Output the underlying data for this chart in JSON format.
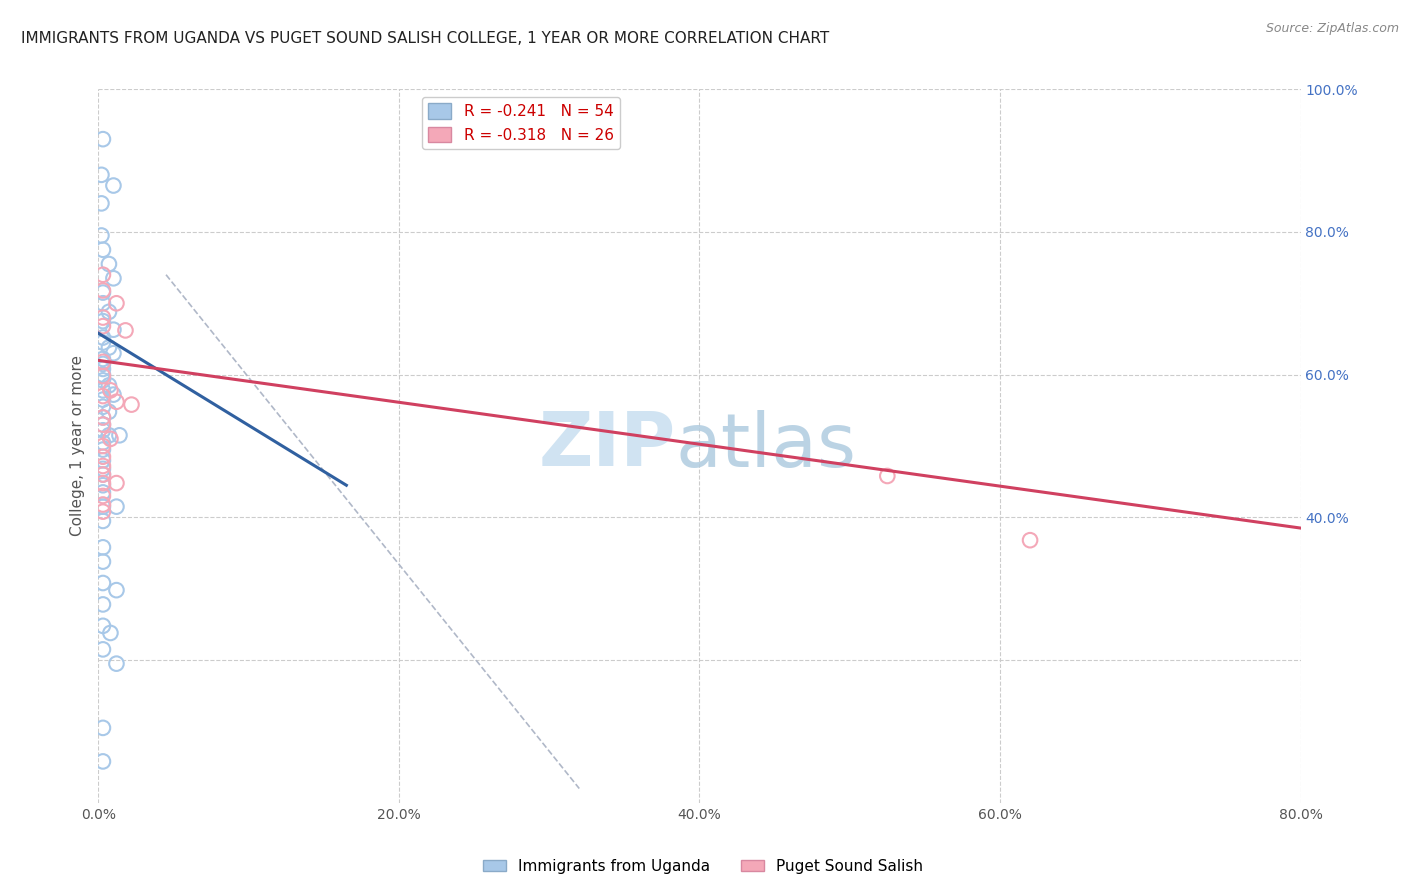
{
  "title": "IMMIGRANTS FROM UGANDA VS PUGET SOUND SALISH COLLEGE, 1 YEAR OR MORE CORRELATION CHART",
  "source": "Source: ZipAtlas.com",
  "ylabel": "College, 1 year or more",
  "xlim": [
    0.0,
    0.8
  ],
  "ylim": [
    0.0,
    1.0
  ],
  "blue_color": "#a8c8e8",
  "pink_color": "#f4a8b8",
  "blue_line_color": "#3060a0",
  "pink_line_color": "#d04060",
  "right_axis_color": "#4472c4",
  "blue_R": "-0.241",
  "blue_N": "54",
  "pink_R": "-0.318",
  "pink_N": "26",
  "blue_dots": [
    [
      0.003,
      0.93
    ],
    [
      0.002,
      0.88
    ],
    [
      0.01,
      0.865
    ],
    [
      0.002,
      0.84
    ],
    [
      0.002,
      0.795
    ],
    [
      0.003,
      0.775
    ],
    [
      0.007,
      0.755
    ],
    [
      0.01,
      0.735
    ],
    [
      0.003,
      0.715
    ],
    [
      0.003,
      0.7
    ],
    [
      0.007,
      0.688
    ],
    [
      0.003,
      0.675
    ],
    [
      0.01,
      0.663
    ],
    [
      0.003,
      0.652
    ],
    [
      0.003,
      0.645
    ],
    [
      0.007,
      0.638
    ],
    [
      0.01,
      0.63
    ],
    [
      0.003,
      0.622
    ],
    [
      0.003,
      0.615
    ],
    [
      0.003,
      0.608
    ],
    [
      0.003,
      0.6
    ],
    [
      0.003,
      0.592
    ],
    [
      0.007,
      0.585
    ],
    [
      0.003,
      0.578
    ],
    [
      0.01,
      0.572
    ],
    [
      0.003,
      0.565
    ],
    [
      0.003,
      0.555
    ],
    [
      0.007,
      0.548
    ],
    [
      0.003,
      0.54
    ],
    [
      0.003,
      0.53
    ],
    [
      0.003,
      0.522
    ],
    [
      0.007,
      0.515
    ],
    [
      0.014,
      0.515
    ],
    [
      0.003,
      0.505
    ],
    [
      0.003,
      0.495
    ],
    [
      0.003,
      0.48
    ],
    [
      0.003,
      0.468
    ],
    [
      0.003,
      0.46
    ],
    [
      0.003,
      0.445
    ],
    [
      0.003,
      0.435
    ],
    [
      0.003,
      0.415
    ],
    [
      0.012,
      0.415
    ],
    [
      0.003,
      0.395
    ],
    [
      0.003,
      0.358
    ],
    [
      0.003,
      0.338
    ],
    [
      0.003,
      0.308
    ],
    [
      0.012,
      0.298
    ],
    [
      0.003,
      0.278
    ],
    [
      0.003,
      0.248
    ],
    [
      0.008,
      0.238
    ],
    [
      0.003,
      0.215
    ],
    [
      0.012,
      0.195
    ],
    [
      0.003,
      0.105
    ],
    [
      0.003,
      0.058
    ]
  ],
  "pink_dots": [
    [
      0.003,
      0.74
    ],
    [
      0.003,
      0.718
    ],
    [
      0.012,
      0.7
    ],
    [
      0.003,
      0.68
    ],
    [
      0.003,
      0.668
    ],
    [
      0.018,
      0.662
    ],
    [
      0.003,
      0.618
    ],
    [
      0.003,
      0.598
    ],
    [
      0.008,
      0.578
    ],
    [
      0.003,
      0.57
    ],
    [
      0.012,
      0.562
    ],
    [
      0.022,
      0.558
    ],
    [
      0.003,
      0.54
    ],
    [
      0.003,
      0.53
    ],
    [
      0.008,
      0.51
    ],
    [
      0.003,
      0.5
    ],
    [
      0.003,
      0.485
    ],
    [
      0.003,
      0.472
    ],
    [
      0.003,
      0.46
    ],
    [
      0.003,
      0.448
    ],
    [
      0.012,
      0.448
    ],
    [
      0.003,
      0.43
    ],
    [
      0.003,
      0.418
    ],
    [
      0.003,
      0.408
    ],
    [
      0.525,
      0.458
    ],
    [
      0.62,
      0.368
    ]
  ],
  "blue_trend_x": [
    0.0,
    0.165
  ],
  "blue_trend_y": [
    0.658,
    0.445
  ],
  "pink_trend_x": [
    0.0,
    0.8
  ],
  "pink_trend_y": [
    0.62,
    0.385
  ],
  "dashed_line_x": [
    0.045,
    0.32
  ],
  "dashed_line_y": [
    0.74,
    0.02
  ],
  "grid_color": "#cccccc",
  "background_color": "#ffffff",
  "title_color": "#222222",
  "axis_label_color": "#555555",
  "right_yticks": [
    0.4,
    0.6,
    0.8,
    1.0
  ],
  "right_ylabels": [
    "40.0%",
    "60.0%",
    "80.0%",
    "100.0%"
  ]
}
